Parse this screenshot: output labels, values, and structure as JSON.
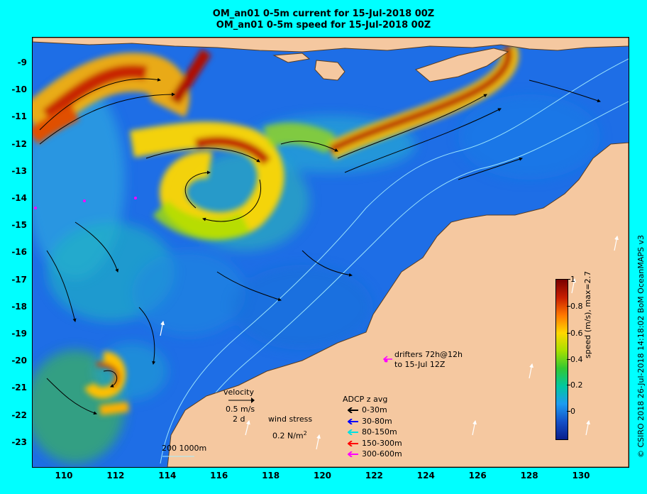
{
  "title": {
    "line1": "OM_an01 0-5m current for 15-Jul-2018 00Z",
    "line2": "OM_an01 0-5m speed for 15-Jul-2018 00Z"
  },
  "axes": {
    "y_ticks": [
      "-9",
      "-10",
      "-11",
      "-12",
      "-13",
      "-14",
      "-15",
      "-16",
      "-17",
      "-18",
      "-19",
      "-20",
      "-21",
      "-22",
      "-23"
    ],
    "x_ticks": [
      "110",
      "112",
      "114",
      "116",
      "118",
      "120",
      "122",
      "124",
      "126",
      "128",
      "130"
    ]
  },
  "colorbar": {
    "ticks": [
      "1",
      "0.8",
      "0.6",
      "0.4",
      "0.2",
      "0"
    ],
    "label": "speed (m/s), max=2.7",
    "colors": [
      "#7a0000",
      "#c81e00",
      "#ff7800",
      "#ffd700",
      "#a8e000",
      "#32c832",
      "#00c8a0",
      "#1e9bf0",
      "#1450c8",
      "#0a1e8c"
    ]
  },
  "annotations": {
    "velocity_title": "velocity",
    "velocity_scale": "0.5 m/s",
    "velocity_time": "2 d",
    "wind_title": "wind stress",
    "wind_scale_prefix": "0.2 N/m",
    "wind_scale_sup": "2",
    "drifters_line1": "drifters 72h@12h",
    "drifters_line2": "to 15-Jul 12Z",
    "isobaths": "200  1000m"
  },
  "adcp_legend": {
    "title": "ADCP z avg",
    "items": [
      {
        "label": "0-30m",
        "color": "#000000"
      },
      {
        "label": "30-80m",
        "color": "#0000ff"
      },
      {
        "label": "80-150m",
        "color": "#00e0e0"
      },
      {
        "label": "150-300m",
        "color": "#ff0000"
      },
      {
        "label": "300-600m",
        "color": "#ff00ff"
      }
    ]
  },
  "credit": "© CSIRO 2018  26-Jul-2018 14:18:02 BoM OceanMAPS v3",
  "colors": {
    "background": "#00ffff",
    "ocean_base": "#1e6ee6",
    "land": "#f5c8a0",
    "coast": "#5a3c1e"
  }
}
